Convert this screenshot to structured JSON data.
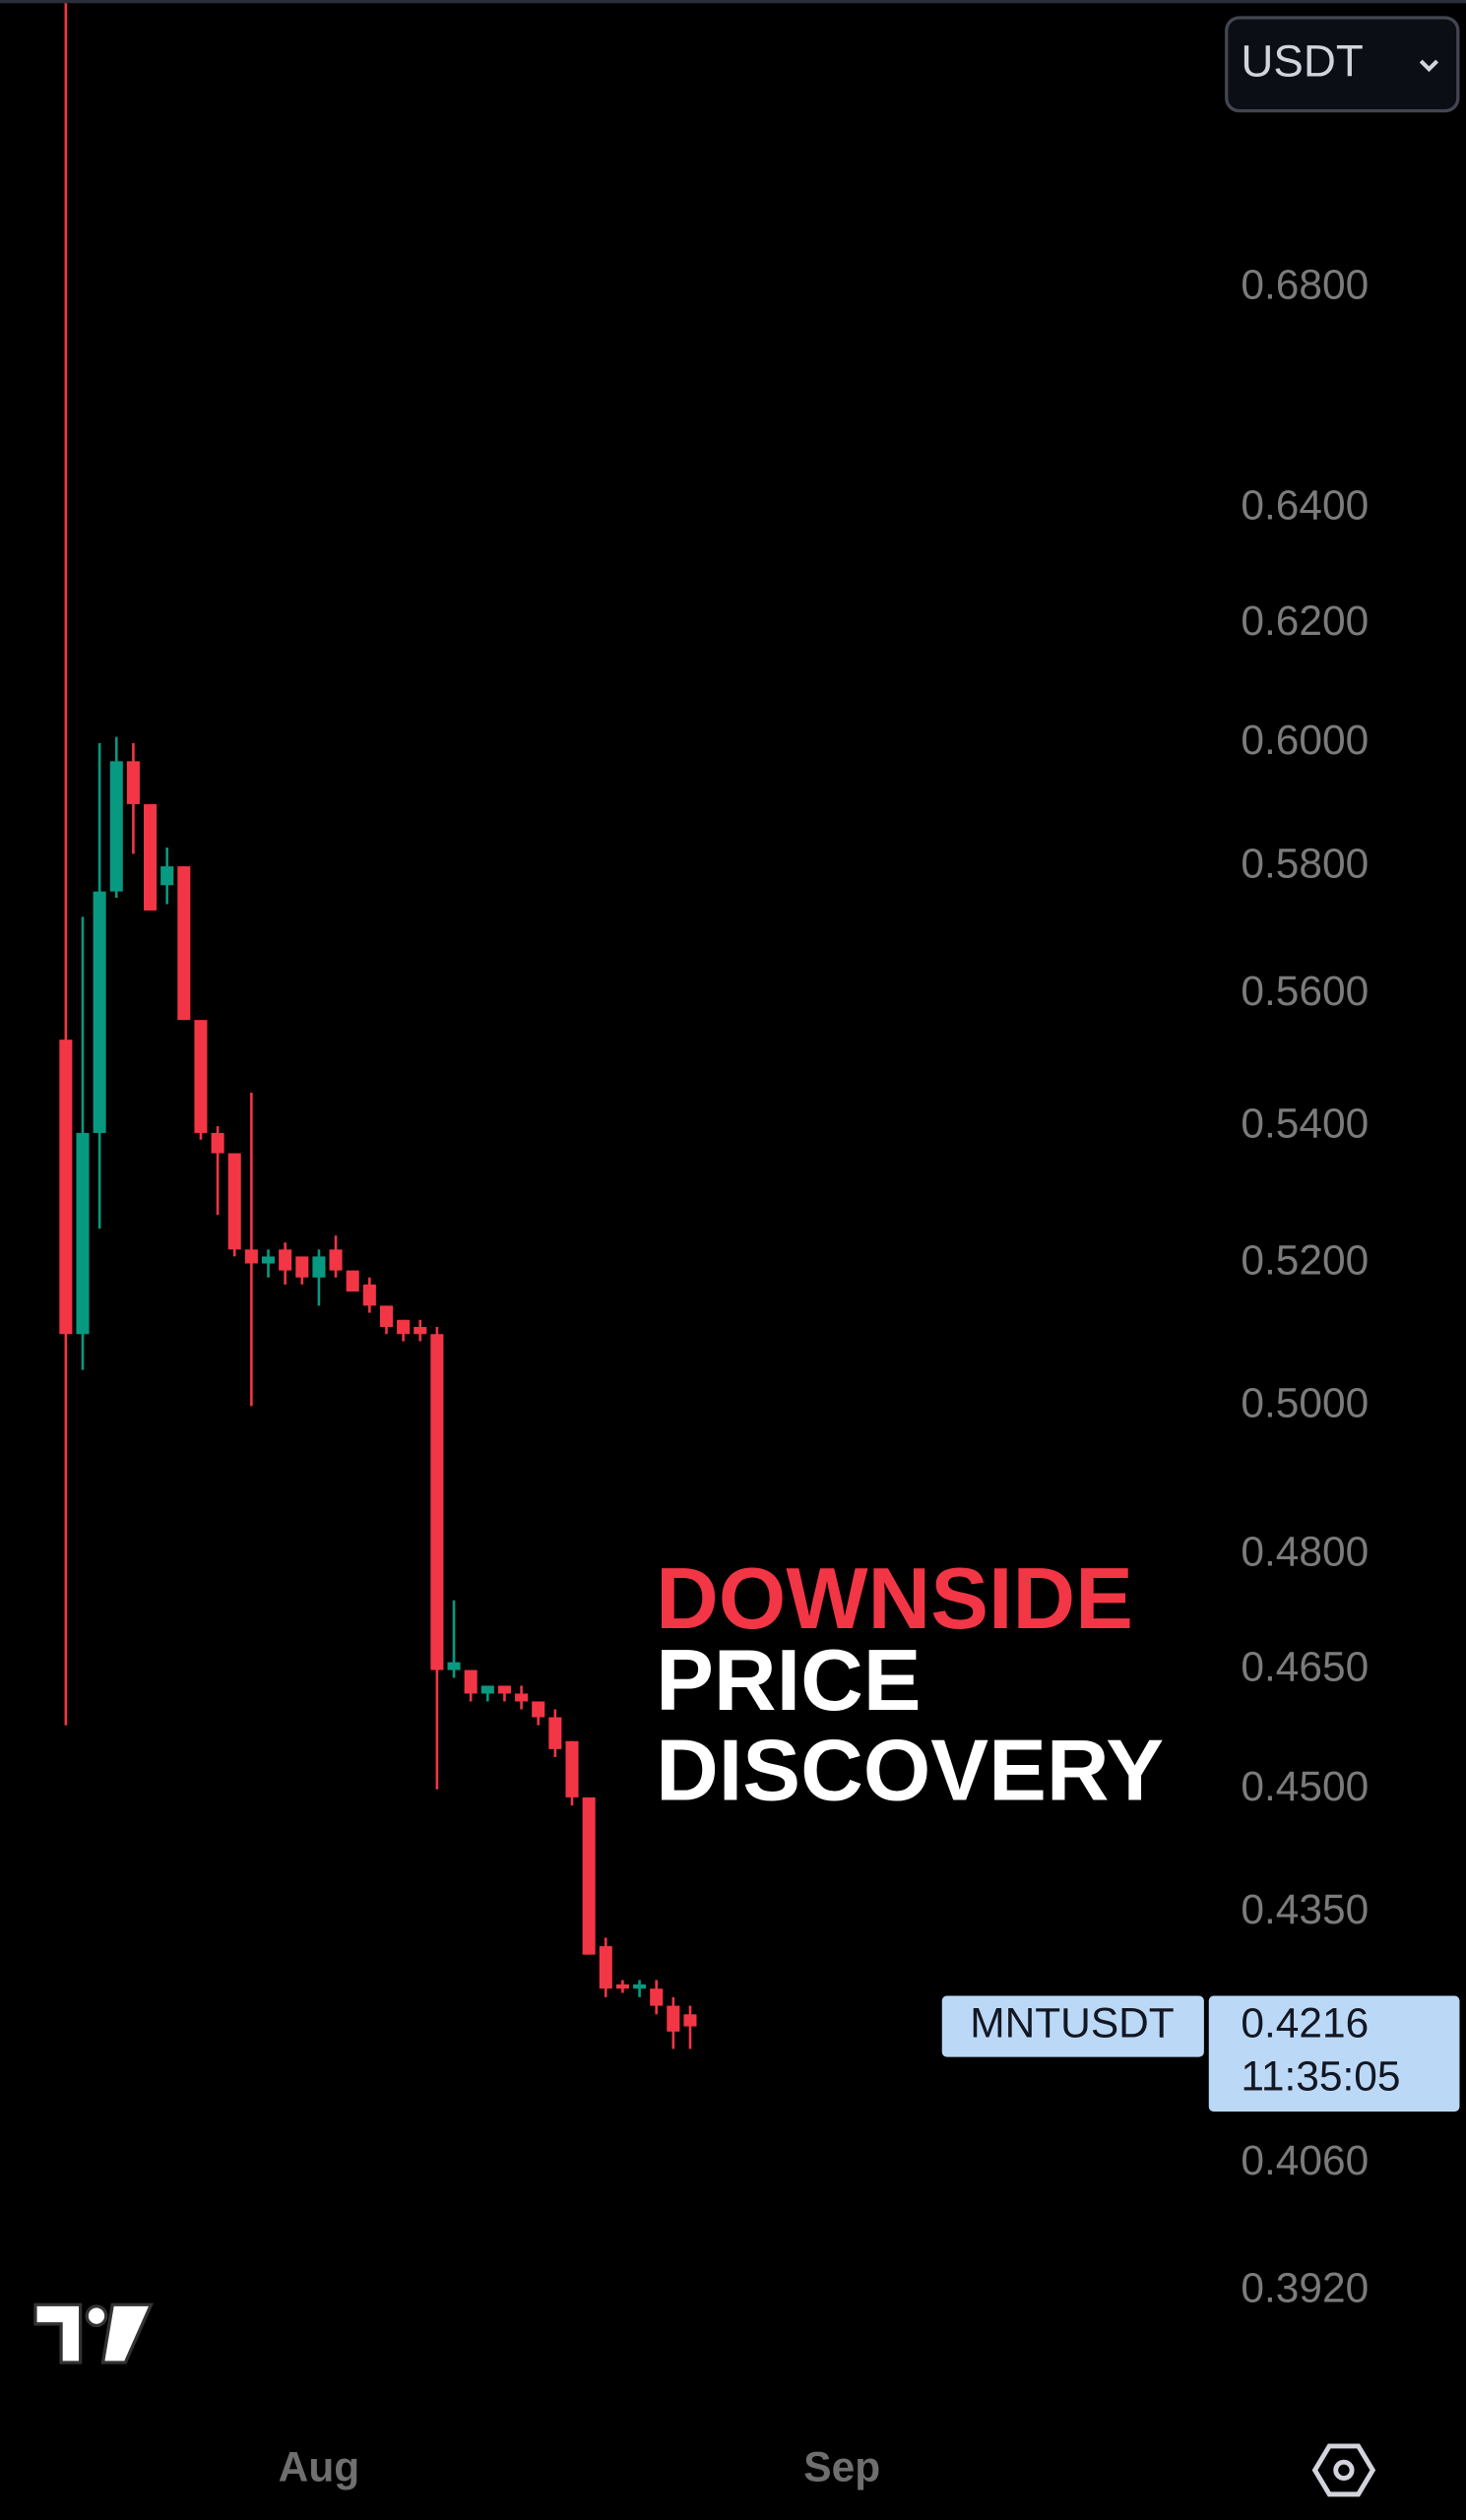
{
  "toolbar": {
    "currency": "USDT"
  },
  "chart_data": {
    "type": "candlestick",
    "symbol": "MNTUSDT",
    "countdown": "11:35:05",
    "annotation": [
      "DOWNSIDE",
      "PRICE",
      "DISCOVERY"
    ],
    "log_scale": true,
    "up_color": "#089981",
    "down_color": "#f23645",
    "x": [
      0,
      1,
      2,
      3,
      4,
      5,
      6,
      7,
      8,
      9,
      10,
      11,
      12,
      13,
      14,
      15,
      16,
      17,
      18,
      19,
      20,
      21,
      22,
      23,
      24,
      25,
      26,
      27,
      28,
      29,
      30,
      31,
      32,
      33,
      34,
      35,
      36,
      37
    ],
    "open": [
      0.553,
      0.51,
      0.539,
      0.576,
      0.597,
      0.59,
      0.577,
      0.58,
      0.556,
      0.539,
      0.536,
      0.522,
      0.52,
      0.522,
      0.521,
      0.518,
      0.522,
      0.519,
      0.517,
      0.514,
      0.512,
      0.511,
      0.51,
      0.465,
      0.465,
      0.462,
      0.463,
      0.462,
      0.461,
      0.459,
      0.456,
      0.449,
      0.431,
      0.4265,
      0.426,
      0.426,
      0.424,
      0.423
    ],
    "high": [
      0.74,
      0.572,
      0.6,
      0.601,
      0.6,
      0.59,
      0.583,
      0.58,
      0.556,
      0.54,
      0.536,
      0.545,
      0.522,
      0.523,
      0.521,
      0.522,
      0.524,
      0.519,
      0.518,
      0.514,
      0.512,
      0.512,
      0.511,
      0.474,
      0.465,
      0.463,
      0.463,
      0.463,
      0.461,
      0.46,
      0.456,
      0.449,
      0.432,
      0.427,
      0.427,
      0.427,
      0.425,
      0.424
    ],
    "low": [
      0.458,
      0.505,
      0.525,
      0.575,
      0.582,
      0.573,
      0.574,
      0.556,
      0.538,
      0.527,
      0.521,
      0.5,
      0.518,
      0.517,
      0.517,
      0.514,
      0.518,
      0.516,
      0.513,
      0.51,
      0.509,
      0.509,
      0.45,
      0.464,
      0.461,
      0.461,
      0.461,
      0.46,
      0.458,
      0.454,
      0.448,
      0.43,
      0.425,
      0.4255,
      0.425,
      0.423,
      0.419,
      0.419
    ],
    "close": [
      0.51,
      0.539,
      0.576,
      0.597,
      0.59,
      0.573,
      0.58,
      0.556,
      0.539,
      0.536,
      0.522,
      0.52,
      0.521,
      0.519,
      0.518,
      0.521,
      0.519,
      0.516,
      0.514,
      0.511,
      0.51,
      0.51,
      0.465,
      0.466,
      0.462,
      0.463,
      0.462,
      0.461,
      0.459,
      0.455,
      0.449,
      0.43,
      0.426,
      0.426,
      0.4265,
      0.424,
      0.421,
      0.4216
    ],
    "xlim": [
      -3.9,
      68.5
    ],
    "xticks": [
      {
        "value": 15,
        "label": "Aug"
      },
      {
        "value": 46,
        "label": "Sep"
      }
    ],
    "ylim": [
      0.381,
      0.736
    ],
    "yticks": [
      {
        "value": 0.392,
        "label": "0.3920"
      },
      {
        "value": 0.406,
        "label": "0.4060"
      },
      {
        "value": 0.435,
        "label": "0.4350"
      },
      {
        "value": 0.45,
        "label": "0.4500"
      },
      {
        "value": 0.465,
        "label": "0.4650"
      },
      {
        "value": 0.48,
        "label": "0.4800"
      },
      {
        "value": 0.5,
        "label": "0.5000"
      },
      {
        "value": 0.52,
        "label": "0.5200"
      },
      {
        "value": 0.54,
        "label": "0.5400"
      },
      {
        "value": 0.56,
        "label": "0.5600"
      },
      {
        "value": 0.58,
        "label": "0.5800"
      },
      {
        "value": 0.6,
        "label": "0.6000"
      },
      {
        "value": 0.62,
        "label": "0.6200"
      },
      {
        "value": 0.64,
        "label": "0.6400"
      },
      {
        "value": 0.68,
        "label": "0.6800"
      }
    ]
  }
}
